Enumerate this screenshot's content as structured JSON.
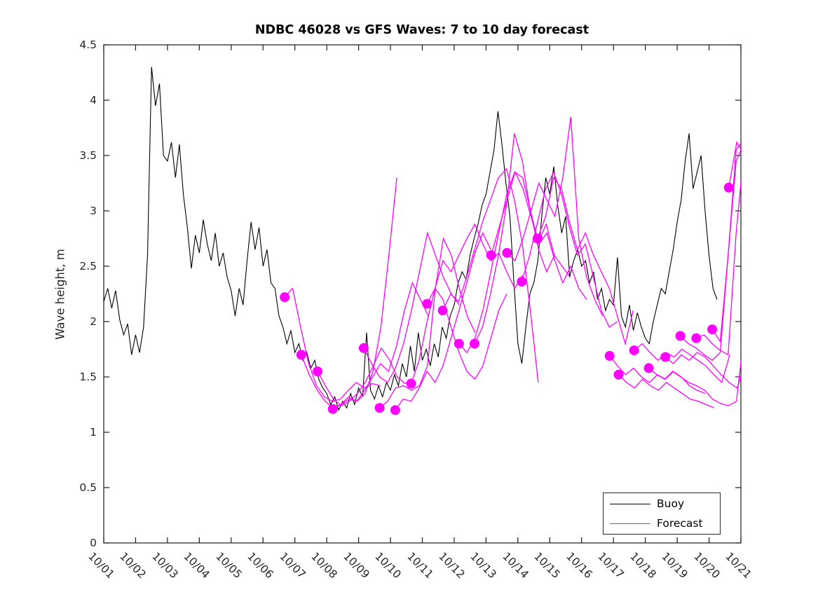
{
  "title": "NDBC 46028 vs GFS Waves: 7 to 10 day forecast",
  "chart_data": {
    "type": "line",
    "title": "NDBC 46028 vs GFS Waves: 7 to 10 day forecast",
    "xlabel": "",
    "ylabel": "Wave height, m",
    "ylim": [
      0,
      4.5
    ],
    "y_ticks": [
      0,
      0.5,
      1,
      1.5,
      2,
      2.5,
      3,
      3.5,
      4,
      4.5
    ],
    "y_tick_labels": [
      "0",
      "0.5",
      "1",
      "1.5",
      "2",
      "2.5",
      "3",
      "3.5",
      "4",
      "4.5"
    ],
    "x_tick_labels": [
      "10/01",
      "10/02",
      "10/03",
      "10/04",
      "10/05",
      "10/06",
      "10/07",
      "10/08",
      "10/09",
      "10/10",
      "10/11",
      "10/12",
      "10/13",
      "10/14",
      "10/15",
      "10/16",
      "10/17",
      "10/18",
      "10/19",
      "10/20",
      "10/21"
    ],
    "x_range_days": [
      0,
      20
    ],
    "grid": false,
    "box": true,
    "tick_direction": "in",
    "legend": {
      "position": "lower-right",
      "entries": [
        {
          "label": "Buoy",
          "color": "#000000",
          "style": "solid-line"
        },
        {
          "label": "Forecast",
          "color": "#ff00ff",
          "style": "solid-line-with-start-dot"
        }
      ]
    },
    "axis_color": "#1a1a1a",
    "tick_label_color": "#262626",
    "buoy": {
      "name": "Buoy",
      "color": "#000000",
      "t_start_days": 0,
      "t_step_days": 0.125,
      "values": [
        2.18,
        2.3,
        2.12,
        2.28,
        2.02,
        1.88,
        1.98,
        1.7,
        1.88,
        1.72,
        1.95,
        2.6,
        4.3,
        3.95,
        4.15,
        3.5,
        3.45,
        3.62,
        3.3,
        3.6,
        3.15,
        2.85,
        2.48,
        2.78,
        2.62,
        2.92,
        2.7,
        2.55,
        2.8,
        2.5,
        2.62,
        2.4,
        2.28,
        2.05,
        2.3,
        2.15,
        2.55,
        2.9,
        2.65,
        2.85,
        2.5,
        2.65,
        2.35,
        2.3,
        2.05,
        1.95,
        1.8,
        1.92,
        1.72,
        1.8,
        1.65,
        1.72,
        1.58,
        1.65,
        1.48,
        1.4,
        1.35,
        1.25,
        1.32,
        1.2,
        1.28,
        1.22,
        1.35,
        1.25,
        1.4,
        1.32,
        1.9,
        1.38,
        1.3,
        1.42,
        1.32,
        1.45,
        1.38,
        1.52,
        1.42,
        1.62,
        1.5,
        1.78,
        1.55,
        1.9,
        1.65,
        1.75,
        1.6,
        1.8,
        1.68,
        1.95,
        1.85,
        2.05,
        2.15,
        2.35,
        2.45,
        2.38,
        2.6,
        2.75,
        2.88,
        3.05,
        3.15,
        3.35,
        3.55,
        3.9,
        3.6,
        3.25,
        2.95,
        2.35,
        1.8,
        1.62,
        1.95,
        2.25,
        2.35,
        2.55,
        2.95,
        3.3,
        3.15,
        3.4,
        3.05,
        2.8,
        2.95,
        2.4,
        2.55,
        2.65,
        2.5,
        2.55,
        2.35,
        2.45,
        2.2,
        2.3,
        2.1,
        2.2,
        2.15,
        2.58,
        2.05,
        1.95,
        2.15,
        1.92,
        2.08,
        1.95,
        1.85,
        1.8,
        2.0,
        2.15,
        2.3,
        2.25,
        2.45,
        2.65,
        2.9,
        3.1,
        3.45,
        3.7,
        3.2,
        3.35,
        3.5,
        3.0,
        2.6,
        2.3,
        2.2
      ]
    },
    "forecast": {
      "name": "Forecast",
      "color": "#ff00ff",
      "marker": "filled-circle-at-segment-start",
      "marker_radius_px": 7,
      "t_step_days": 0.25,
      "segments": [
        {
          "t0": 5.68,
          "values": [
            2.22,
            2.3,
            1.95,
            1.62,
            1.42,
            1.32,
            1.28,
            1.3,
            1.38,
            1.45,
            1.4,
            1.44,
            1.42
          ]
        },
        {
          "t0": 6.2,
          "values": [
            1.7,
            1.52,
            1.38,
            1.28,
            1.22,
            1.25,
            1.3,
            1.28,
            1.35,
            1.55,
            1.95,
            2.6,
            3.3
          ]
        },
        {
          "t0": 6.71,
          "values": [
            1.55,
            1.42,
            1.3,
            1.24,
            1.28,
            1.35,
            1.45,
            1.6,
            1.76,
            1.66,
            1.5,
            1.44,
            1.47
          ]
        },
        {
          "t0": 7.19,
          "values": [
            1.21,
            1.25,
            1.32,
            1.28,
            1.38,
            1.5,
            1.62,
            1.55,
            1.78,
            2.1,
            2.35,
            2.2,
            2.05
          ]
        },
        {
          "t0": 8.16,
          "values": [
            1.76,
            1.62,
            1.5,
            1.45,
            1.58,
            1.8,
            2.1,
            2.45,
            2.8,
            2.6,
            2.4,
            2.25,
            2.15
          ]
        },
        {
          "t0": 8.66,
          "values": [
            1.22,
            1.28,
            1.4,
            1.42,
            1.38,
            1.42,
            1.6,
            2.3,
            2.75,
            2.6,
            2.3,
            2.05,
            1.9
          ]
        },
        {
          "t0": 9.15,
          "values": [
            1.2,
            1.3,
            1.28,
            1.4,
            1.55,
            1.45,
            1.6,
            1.85,
            2.1,
            2.35,
            2.62,
            2.8,
            2.65
          ]
        },
        {
          "t0": 9.65,
          "values": [
            1.44,
            1.65,
            2.0,
            2.3,
            2.2,
            1.95,
            1.72,
            1.55,
            1.48,
            1.6,
            1.85,
            2.1,
            2.25
          ]
        },
        {
          "t0": 10.15,
          "values": [
            2.16,
            2.3,
            2.55,
            2.45,
            2.6,
            2.75,
            2.88,
            2.7,
            2.55,
            2.62,
            2.45,
            2.3,
            2.42
          ]
        },
        {
          "t0": 10.64,
          "values": [
            2.1,
            2.25,
            2.18,
            2.4,
            2.65,
            2.9,
            3.1,
            3.3,
            3.38,
            3.1,
            2.7,
            2.1,
            1.45
          ]
        },
        {
          "t0": 11.15,
          "values": [
            1.8,
            1.72,
            1.85,
            2.1,
            2.45,
            2.8,
            3.15,
            3.35,
            3.3,
            3.0,
            2.65,
            2.45,
            2.6
          ]
        },
        {
          "t0": 11.64,
          "values": [
            1.8,
            1.95,
            2.25,
            2.6,
            3.05,
            3.7,
            3.45,
            3.0,
            2.72,
            2.88,
            2.6,
            2.5,
            2.4
          ]
        },
        {
          "t0": 12.16,
          "values": [
            2.6,
            2.85,
            3.1,
            3.35,
            3.2,
            2.95,
            2.7,
            2.8,
            2.55,
            2.35,
            2.5,
            2.3,
            2.2
          ]
        },
        {
          "t0": 12.66,
          "values": [
            2.62,
            2.55,
            2.75,
            3.0,
            3.25,
            3.1,
            2.95,
            3.3,
            3.85,
            2.75,
            2.4,
            2.2,
            2.05
          ]
        },
        {
          "t0": 13.12,
          "values": [
            2.36,
            2.6,
            2.9,
            3.2,
            3.35,
            3.15,
            2.85,
            2.6,
            2.7,
            2.4,
            2.1,
            1.95,
            2.0
          ]
        },
        {
          "t0": 13.62,
          "values": [
            2.75,
            2.95,
            3.3,
            3.2,
            2.9,
            2.65,
            2.8,
            2.6,
            2.45,
            2.3,
            2.05,
            1.8,
            2.1
          ]
        },
        {
          "t0": 15.88,
          "values": [
            1.69,
            1.6,
            1.52,
            1.58,
            1.5,
            1.45,
            1.52,
            1.48,
            1.55,
            1.5,
            1.42,
            1.38,
            1.35
          ]
        },
        {
          "t0": 16.16,
          "values": [
            1.52,
            1.45,
            1.4,
            1.48,
            1.42,
            1.38,
            1.45,
            1.4,
            1.35,
            1.3,
            1.28,
            1.25,
            1.22
          ]
        },
        {
          "t0": 16.65,
          "values": [
            1.74,
            1.8,
            1.72,
            1.65,
            1.72,
            1.68,
            1.75,
            1.7,
            1.65,
            1.6,
            1.52,
            1.45,
            1.7
          ]
        },
        {
          "t0": 17.11,
          "values": [
            1.58,
            1.52,
            1.48,
            1.55,
            1.5,
            1.45,
            1.42,
            1.38,
            1.3,
            1.26,
            1.24,
            1.28,
            1.9
          ]
        },
        {
          "t0": 17.63,
          "values": [
            1.68,
            1.62,
            1.7,
            1.65,
            1.72,
            1.68,
            1.6,
            1.52,
            1.45,
            1.4,
            1.6,
            2.9,
            3.6
          ]
        },
        {
          "t0": 18.1,
          "values": [
            1.87,
            1.8,
            1.76,
            1.7,
            1.65,
            1.72,
            2.6,
            3.45,
            3.62,
            3.4,
            3.3,
            3.2,
            3.1
          ]
        },
        {
          "t0": 18.6,
          "values": [
            1.85,
            1.88,
            1.8,
            1.74,
            1.7,
            2.8,
            3.55,
            3.4,
            3.5,
            3.3,
            3.2,
            3.1,
            3.0
          ]
        },
        {
          "t0": 19.1,
          "values": [
            1.93,
            1.82,
            2.6,
            3.55,
            3.65,
            3.5,
            3.4,
            3.3,
            3.2,
            3.1,
            3.0,
            2.9,
            2.8
          ]
        },
        {
          "t0": 19.62,
          "values": [
            3.21,
            3.62,
            3.5,
            3.4,
            3.3,
            3.2,
            3.1,
            3.0,
            2.9,
            2.8,
            2.7,
            2.6,
            2.5
          ]
        }
      ]
    }
  }
}
